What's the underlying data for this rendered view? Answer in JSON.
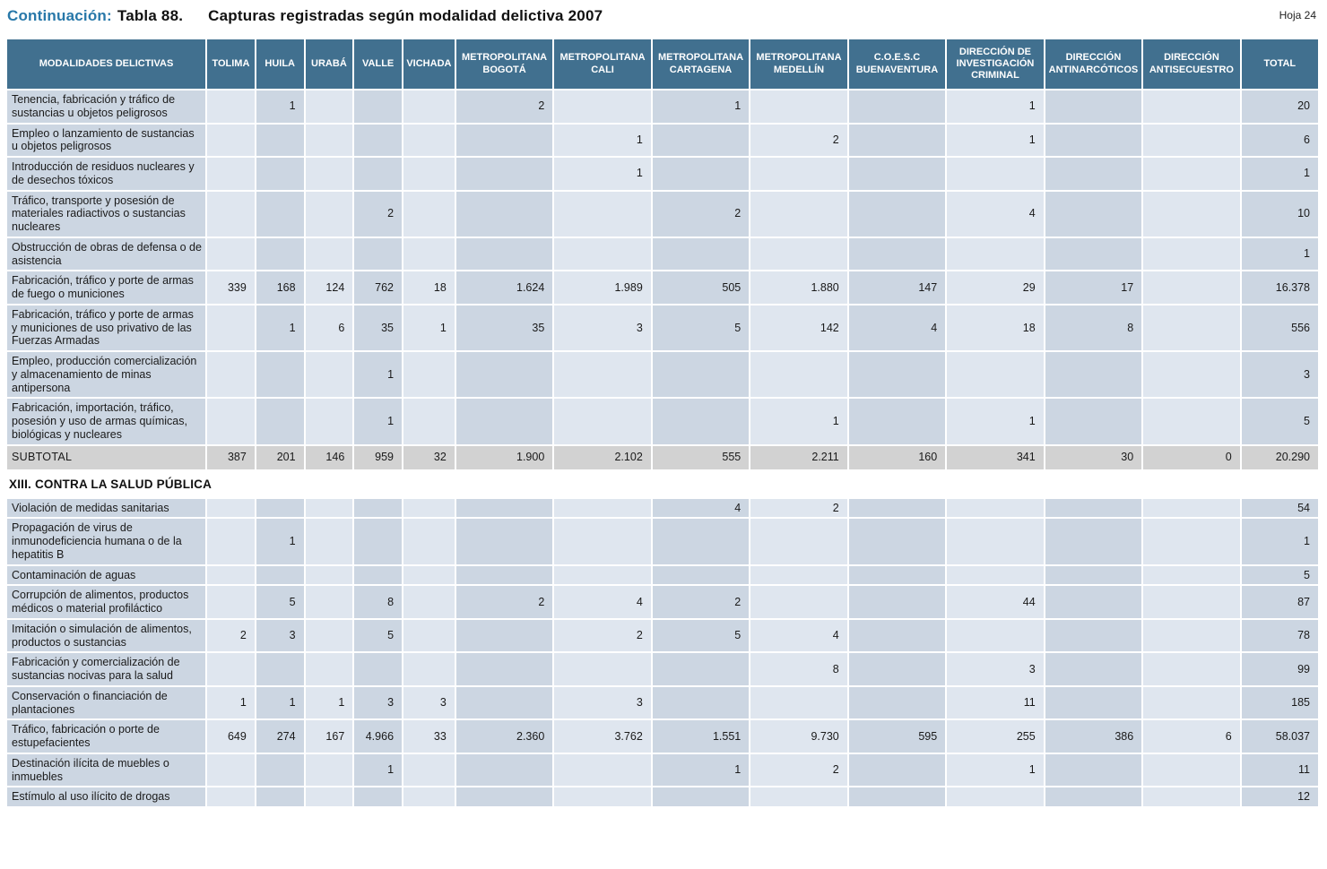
{
  "page": {
    "title_prefix": "Continuación:",
    "title_table": "Tabla 88.",
    "title_main": "Capturas registradas según modalidad delictiva 2007",
    "sheet": "Hoja 24"
  },
  "table": {
    "columns": [
      "MODALIDADES DELICTIVAS",
      "TOLIMA",
      "HUILA",
      "URABÁ",
      "VALLE",
      "VICHADA",
      "METROPOLITANA BOGOTÁ",
      "METROPOLITANA CALI",
      "METROPOLITANA CARTAGENA",
      "METROPOLITANA MEDELLÍN",
      "C.O.E.S.C BUENAVENTURA",
      "DIRECCIÓN DE INVESTIGACIÓN CRIMINAL",
      "DIRECCIÓN ANTINARCÓTICOS",
      "DIRECCIÓN ANTISECUESTRO",
      "TOTAL"
    ],
    "rows": [
      {
        "type": "data",
        "label": "Tenencia, fabricación y tráfico de sustancias u objetos peligrosos",
        "values": [
          "",
          "1",
          "",
          "",
          "",
          "2",
          "",
          "1",
          "",
          "",
          "1",
          "",
          "",
          "20"
        ]
      },
      {
        "type": "data",
        "label": "Empleo o lanzamiento de sustancias u objetos peligrosos",
        "values": [
          "",
          "",
          "",
          "",
          "",
          "",
          "1",
          "",
          "2",
          "",
          "1",
          "",
          "",
          "6"
        ]
      },
      {
        "type": "data",
        "label": "Introducción de residuos nucleares y de desechos tóxicos",
        "values": [
          "",
          "",
          "",
          "",
          "",
          "",
          "1",
          "",
          "",
          "",
          "",
          "",
          "",
          "1"
        ]
      },
      {
        "type": "data",
        "label": "Tráfico, transporte y posesión de materiales radiactivos o sustancias nucleares",
        "values": [
          "",
          "",
          "",
          "2",
          "",
          "",
          "",
          "2",
          "",
          "",
          "4",
          "",
          "",
          "10"
        ]
      },
      {
        "type": "data",
        "label": "Obstrucción de obras de defensa o de asistencia",
        "values": [
          "",
          "",
          "",
          "",
          "",
          "",
          "",
          "",
          "",
          "",
          "",
          "",
          "",
          "1"
        ]
      },
      {
        "type": "data",
        "label": "Fabricación, tráfico y porte de armas de fuego o municiones",
        "values": [
          "339",
          "168",
          "124",
          "762",
          "18",
          "1.624",
          "1.989",
          "505",
          "1.880",
          "147",
          "29",
          "17",
          "",
          "16.378"
        ]
      },
      {
        "type": "data",
        "label": "Fabricación, tráfico y porte de armas y municiones de uso privativo de las Fuerzas Armadas",
        "values": [
          "",
          "1",
          "6",
          "35",
          "1",
          "35",
          "3",
          "5",
          "142",
          "4",
          "18",
          "8",
          "",
          "556"
        ]
      },
      {
        "type": "data",
        "label": "Empleo, producción comercialización y almacenamiento de minas antipersona",
        "values": [
          "",
          "",
          "",
          "1",
          "",
          "",
          "",
          "",
          "",
          "",
          "",
          "",
          "",
          "3"
        ]
      },
      {
        "type": "data",
        "label": "Fabricación, importación, tráfico, posesión y uso de armas químicas, biológicas y nucleares",
        "values": [
          "",
          "",
          "",
          "1",
          "",
          "",
          "",
          "",
          "1",
          "",
          "1",
          "",
          "",
          "5"
        ]
      },
      {
        "type": "subtotal",
        "label": "SUBTOTAL",
        "values": [
          "387",
          "201",
          "146",
          "959",
          "32",
          "1.900",
          "2.102",
          "555",
          "2.211",
          "160",
          "341",
          "30",
          "0",
          "20.290"
        ]
      },
      {
        "type": "section",
        "label": "XIII. CONTRA LA SALUD PÚBLICA"
      },
      {
        "type": "data",
        "label": "Violación de medidas sanitarias",
        "values": [
          "",
          "",
          "",
          "",
          "",
          "",
          "",
          "4",
          "2",
          "",
          "",
          "",
          "",
          "54"
        ]
      },
      {
        "type": "data",
        "label": "Propagación de virus de inmunodeficiencia humana o de la hepatitis B",
        "values": [
          "",
          "1",
          "",
          "",
          "",
          "",
          "",
          "",
          "",
          "",
          "",
          "",
          "",
          "1"
        ]
      },
      {
        "type": "data",
        "label": "Contaminación de aguas",
        "values": [
          "",
          "",
          "",
          "",
          "",
          "",
          "",
          "",
          "",
          "",
          "",
          "",
          "",
          "5"
        ]
      },
      {
        "type": "data",
        "label": "Corrupción de alimentos, productos médicos o material profiláctico",
        "values": [
          "",
          "5",
          "",
          "8",
          "",
          "2",
          "4",
          "2",
          "",
          "",
          "44",
          "",
          "",
          "87"
        ]
      },
      {
        "type": "data",
        "label": "Imitación o simulación de alimentos, productos o sustancias",
        "values": [
          "2",
          "3",
          "",
          "5",
          "",
          "",
          "2",
          "5",
          "4",
          "",
          "",
          "",
          "",
          "78"
        ]
      },
      {
        "type": "data",
        "label": "Fabricación y comercialización de sustancias nocivas para la salud",
        "values": [
          "",
          "",
          "",
          "",
          "",
          "",
          "",
          "",
          "8",
          "",
          "3",
          "",
          "",
          "99"
        ]
      },
      {
        "type": "data",
        "label": "Conservación o financiación de plantaciones",
        "values": [
          "1",
          "1",
          "1",
          "3",
          "3",
          "",
          "3",
          "",
          "",
          "",
          "11",
          "",
          "",
          "185"
        ]
      },
      {
        "type": "data",
        "label": "Tráfico, fabricación o porte de estupefacientes",
        "values": [
          "649",
          "274",
          "167",
          "4.966",
          "33",
          "2.360",
          "3.762",
          "1.551",
          "9.730",
          "595",
          "255",
          "386",
          "6",
          "58.037"
        ]
      },
      {
        "type": "data",
        "label": "Destinación ilícita de muebles o inmuebles",
        "values": [
          "",
          "",
          "",
          "1",
          "",
          "",
          "",
          "1",
          "2",
          "",
          "1",
          "",
          "",
          "11"
        ]
      },
      {
        "type": "data",
        "label": "Estímulo al uso ilícito de drogas",
        "values": [
          "",
          "",
          "",
          "",
          "",
          "",
          "",
          "",
          "",
          "",
          "",
          "",
          "",
          "12"
        ]
      }
    ]
  }
}
